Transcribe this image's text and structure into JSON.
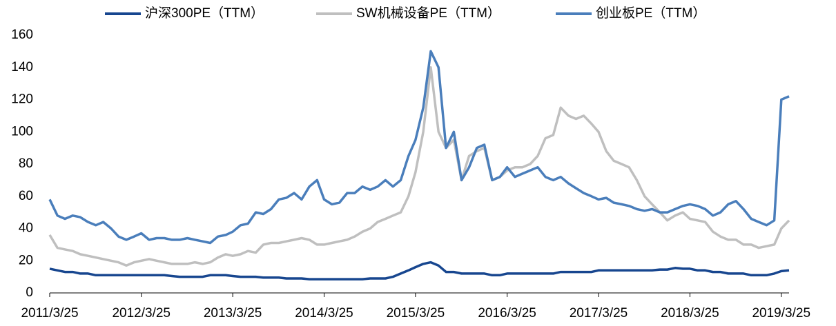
{
  "chart_data": {
    "type": "line",
    "legend": "top",
    "grid": false,
    "x": [
      "2011/3/25",
      "2011/4/25",
      "2011/5/25",
      "2011/6/25",
      "2011/7/25",
      "2011/8/25",
      "2011/9/25",
      "2011/10/25",
      "2011/11/25",
      "2011/12/25",
      "2012/1/25",
      "2012/2/25",
      "2012/3/25",
      "2012/4/25",
      "2012/5/25",
      "2012/6/25",
      "2012/7/25",
      "2012/8/25",
      "2012/9/25",
      "2012/10/25",
      "2012/11/25",
      "2012/12/25",
      "2013/1/25",
      "2013/2/25",
      "2013/3/25",
      "2013/4/25",
      "2013/5/25",
      "2013/6/25",
      "2013/7/25",
      "2013/8/25",
      "2013/9/25",
      "2013/10/25",
      "2013/11/25",
      "2013/12/25",
      "2014/1/25",
      "2014/2/25",
      "2014/3/25",
      "2014/4/25",
      "2014/5/25",
      "2014/6/25",
      "2014/7/25",
      "2014/8/25",
      "2014/9/25",
      "2014/10/25",
      "2014/11/25",
      "2014/12/25",
      "2015/1/25",
      "2015/2/25",
      "2015/3/25",
      "2015/4/25",
      "2015/5/25",
      "2015/6/25",
      "2015/7/25",
      "2015/8/25",
      "2015/9/25",
      "2015/10/25",
      "2015/11/25",
      "2015/12/25",
      "2016/1/25",
      "2016/2/25",
      "2016/3/25",
      "2016/4/25",
      "2016/5/25",
      "2016/6/25",
      "2016/7/25",
      "2016/8/25",
      "2016/9/25",
      "2016/10/25",
      "2016/11/25",
      "2016/12/25",
      "2017/1/25",
      "2017/2/25",
      "2017/3/25",
      "2017/4/25",
      "2017/5/25",
      "2017/6/25",
      "2017/7/25",
      "2017/8/25",
      "2017/9/25",
      "2017/10/25",
      "2017/11/25",
      "2017/12/25",
      "2018/1/25",
      "2018/2/25",
      "2018/3/25",
      "2018/4/25",
      "2018/5/25",
      "2018/6/25",
      "2018/7/25",
      "2018/8/25",
      "2018/9/25",
      "2018/10/25",
      "2018/11/25",
      "2018/12/25",
      "2019/1/25",
      "2019/2/25",
      "2019/3/25",
      "2019/4/25"
    ],
    "series": [
      {
        "name": "沪深300PE（TTM）",
        "color": "#17468f",
        "values": [
          15,
          14,
          13,
          13,
          12,
          12,
          11,
          11,
          11,
          11,
          11,
          11,
          11,
          11,
          11,
          11,
          10.5,
          10,
          10,
          10,
          10,
          11,
          11,
          11,
          10.5,
          10,
          10,
          10,
          9.5,
          9.5,
          9.5,
          9,
          9,
          9,
          8.5,
          8.5,
          8.5,
          8.5,
          8.5,
          8.5,
          8.5,
          8.5,
          9,
          9,
          9,
          10,
          12,
          14,
          16,
          18,
          19,
          17,
          13,
          13,
          12,
          12,
          12,
          12,
          11,
          11,
          12,
          12,
          12,
          12,
          12,
          12,
          12,
          13,
          13,
          13,
          13,
          13,
          14,
          14,
          14,
          14,
          14,
          14,
          14,
          14,
          14.5,
          14.5,
          15.5,
          15,
          15,
          14,
          14,
          13,
          13,
          12,
          12,
          12,
          11,
          11,
          11,
          12,
          13.5,
          14
        ]
      },
      {
        "name": "SW机械设备PE（TTM）",
        "color": "#bfbfbf",
        "values": [
          36,
          28,
          27,
          26,
          24,
          23,
          22,
          21,
          20,
          19,
          17,
          19,
          20,
          21,
          20,
          19,
          18,
          18,
          18,
          19,
          18,
          19,
          22,
          24,
          23,
          24,
          26,
          25,
          30,
          31,
          31,
          32,
          33,
          34,
          33,
          30,
          30,
          31,
          32,
          33,
          35,
          38,
          40,
          44,
          46,
          48,
          50,
          60,
          75,
          100,
          140,
          100,
          90,
          95,
          70,
          85,
          88,
          90,
          70,
          72,
          76,
          78,
          78,
          80,
          85,
          96,
          98,
          115,
          110,
          108,
          110,
          105,
          100,
          88,
          82,
          80,
          78,
          70,
          60,
          55,
          50,
          45,
          48,
          50,
          46,
          45,
          44,
          38,
          35,
          33,
          33,
          30,
          30,
          28,
          29,
          30,
          40,
          45
        ]
      },
      {
        "name": "创业板PE（TTM）",
        "color": "#4a7ebb",
        "values": [
          58,
          48,
          46,
          48,
          47,
          44,
          42,
          44,
          40,
          35,
          33,
          35,
          37,
          33,
          34,
          34,
          33,
          33,
          34,
          33,
          32,
          31,
          35,
          36,
          38,
          42,
          43,
          50,
          49,
          52,
          58,
          59,
          62,
          58,
          66,
          70,
          58,
          55,
          56,
          62,
          62,
          66,
          64,
          66,
          70,
          66,
          70,
          85,
          95,
          115,
          150,
          140,
          90,
          100,
          70,
          78,
          90,
          92,
          70,
          72,
          78,
          72,
          74,
          76,
          78,
          72,
          70,
          72,
          68,
          65,
          62,
          60,
          58,
          59,
          56,
          55,
          54,
          52,
          51,
          52,
          50,
          50,
          52,
          54,
          55,
          54,
          52,
          48,
          50,
          55,
          57,
          52,
          46,
          44,
          42,
          45,
          120,
          122
        ]
      }
    ],
    "xlim": [
      "2011/3/25",
      "2019/4/25"
    ],
    "xticks": [
      "2011/3/25",
      "2012/3/25",
      "2013/3/25",
      "2014/3/25",
      "2015/3/25",
      "2016/3/25",
      "2017/3/25",
      "2018/3/25",
      "2019/3/25"
    ],
    "ylim": [
      0,
      160
    ],
    "yticks": [
      0,
      20,
      40,
      60,
      80,
      100,
      120,
      140,
      160
    ]
  }
}
